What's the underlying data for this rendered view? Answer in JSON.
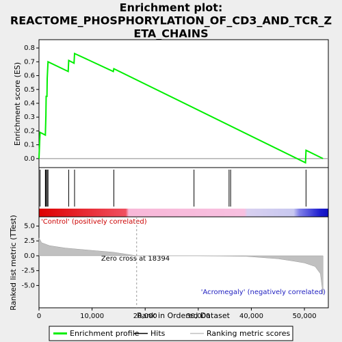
{
  "chart_data": [
    {
      "type": "line",
      "title": [
        "Enrichment plot:",
        "REACTOME_PHOSPHORYLATION_OF_CD3_AND_TCR_Z",
        "ETA_CHAINS"
      ],
      "y_label": "Enrichment score (ES)",
      "series": [
        {
          "name": "Enrichment profile",
          "color": "#00ee00",
          "x": [
            0,
            200,
            1200,
            1300,
            1350,
            1500,
            1550,
            1700,
            5500,
            5600,
            6600,
            6700,
            14000,
            14100,
            50200,
            50300,
            53500
          ],
          "values": [
            0,
            0.19,
            0.17,
            0.31,
            0.45,
            0.45,
            0.58,
            0.7,
            0.63,
            0.71,
            0.69,
            0.76,
            0.63,
            0.65,
            -0.03,
            0.06,
            0
          ]
        }
      ],
      "xlim": [
        0,
        54500
      ],
      "ylim": [
        -0.065,
        0.86
      ],
      "yticks": [
        {
          "value": 0,
          "label": "0.0"
        },
        {
          "value": 0.1,
          "label": "0.1"
        },
        {
          "value": 0.2,
          "label": "0.2"
        },
        {
          "value": 0.3,
          "label": "0.3"
        },
        {
          "value": 0.4,
          "label": "0.4"
        },
        {
          "value": 0.5,
          "label": "0.5"
        },
        {
          "value": 0.6,
          "label": "0.6"
        },
        {
          "value": 0.7,
          "label": "0.7"
        },
        {
          "value": 0.8,
          "label": "0.8"
        }
      ]
    },
    {
      "type": "rug",
      "series": [
        {
          "name": "Hits",
          "color": "#000000",
          "x": [
            200,
            1200,
            1300,
            1350,
            1550,
            1700,
            5600,
            6700,
            14100,
            29200,
            35800,
            36100,
            50300
          ]
        }
      ],
      "xlim": [
        0,
        54500
      ]
    },
    {
      "type": "area",
      "y_label": "Ranked list metric (TTest)",
      "x_label": "Rank in Ordered Dataset",
      "series": [
        {
          "name": "Ranking metric scores",
          "color": "#c0c0c0",
          "x": [
            0,
            500,
            2000,
            5000,
            10000,
            14000,
            18394,
            30000,
            39000,
            45000,
            48000,
            50000,
            52000,
            53000,
            53500
          ],
          "values": [
            3.0,
            2.2,
            1.7,
            1.3,
            0.9,
            0.6,
            0,
            0,
            -0.1,
            -0.5,
            -0.9,
            -1.2,
            -1.8,
            -3.0,
            -6.5
          ]
        }
      ],
      "zero_cross": 18394,
      "annotations": [
        "'Control' (positively correlated)",
        "Zero cross at 18394",
        "'Acromegaly' (negatively correlated)"
      ],
      "xlim": [
        0,
        54500
      ],
      "ylim": [
        -8.75,
        6.55
      ],
      "xticks": [
        0,
        {
          "value": 10000,
          "label": "10,000"
        },
        {
          "value": 20000,
          "label": "20,000"
        },
        {
          "value": 30000,
          "label": "30,000"
        },
        {
          "value": 40000,
          "label": "40,000"
        },
        {
          "value": 50000,
          "label": "50,000"
        }
      ],
      "yticks": [
        {
          "value": 5,
          "label": "5.0"
        },
        {
          "value": 2.5,
          "label": "2.5"
        },
        {
          "value": 0,
          "label": "0.0"
        },
        {
          "value": -2.5,
          "label": "-2.5"
        },
        {
          "value": -5,
          "label": "-5.0"
        }
      ]
    }
  ]
}
